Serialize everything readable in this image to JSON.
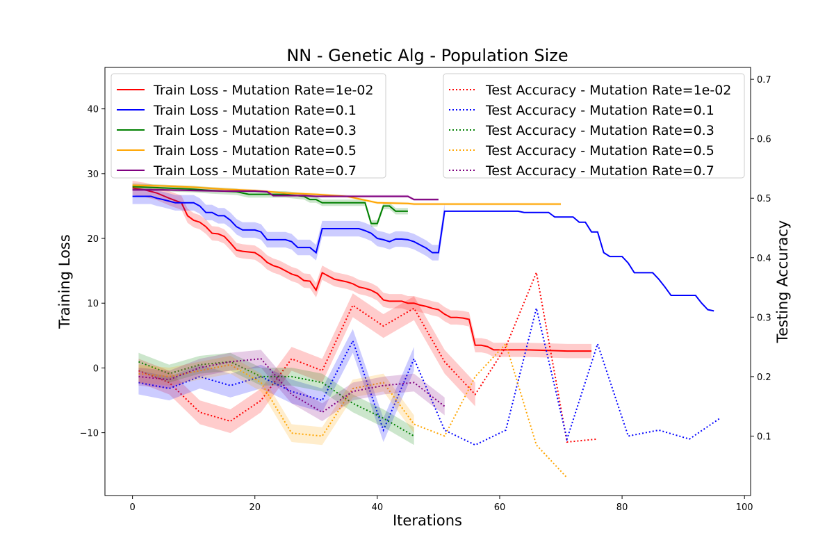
{
  "chart_data": {
    "type": "line",
    "title": "NN - Genetic Alg - Population Size",
    "xlabel": "Iterations",
    "ylabel_left": "Training Loss",
    "ylabel_right": "Testing Accuracy",
    "xlim": [
      -4.5,
      101
    ],
    "ylim_left": [
      -19.7,
      46.4
    ],
    "ylim_right": [
      0.0,
      0.72
    ],
    "x_ticks": [
      0,
      20,
      40,
      60,
      80,
      100
    ],
    "y_ticks_left": [
      -10,
      0,
      10,
      20,
      30,
      40
    ],
    "y_ticks_right": [
      0.1,
      0.2,
      0.3,
      0.4,
      0.5,
      0.6,
      0.7
    ],
    "grid": false,
    "legend_left_position": "upper-left",
    "legend_right_position": "upper-right",
    "train_series": [
      {
        "name": "Train Loss - Mutation Rate=1e-02",
        "color": "#ff0000",
        "points": [
          [
            0,
            27.8
          ],
          [
            2,
            27.5
          ],
          [
            4,
            27
          ],
          [
            6,
            26.2
          ],
          [
            8,
            25.5
          ],
          [
            9,
            23.5
          ],
          [
            10,
            22.8
          ],
          [
            11,
            22.5
          ],
          [
            12,
            21.8
          ],
          [
            13,
            20.8
          ],
          [
            14,
            20.7
          ],
          [
            15,
            20.3
          ],
          [
            16,
            19.3
          ],
          [
            17,
            18.2
          ],
          [
            18,
            18
          ],
          [
            20,
            17.8
          ],
          [
            21,
            17.2
          ],
          [
            22,
            16.3
          ],
          [
            23,
            15.8
          ],
          [
            24,
            15.5
          ],
          [
            25,
            15
          ],
          [
            26,
            14.5
          ],
          [
            27,
            14.2
          ],
          [
            28,
            13.5
          ],
          [
            29,
            13.4
          ],
          [
            30,
            12
          ],
          [
            31,
            14.7
          ],
          [
            32,
            14.2
          ],
          [
            33,
            13.7
          ],
          [
            34,
            13.5
          ],
          [
            35,
            13.3
          ],
          [
            36,
            13
          ],
          [
            37,
            12.5
          ],
          [
            38,
            12.3
          ],
          [
            39,
            12
          ],
          [
            40,
            11.5
          ],
          [
            41,
            10.5
          ],
          [
            42,
            10.3
          ],
          [
            44,
            10.3
          ],
          [
            45,
            10
          ],
          [
            46,
            10
          ],
          [
            47,
            9.7
          ],
          [
            48,
            9.5
          ],
          [
            49,
            9.2
          ],
          [
            50,
            9
          ],
          [
            51,
            8.3
          ],
          [
            52,
            7.8
          ],
          [
            53,
            7.8
          ],
          [
            54,
            7.7
          ],
          [
            55,
            7.5
          ],
          [
            56,
            3.5
          ],
          [
            57,
            3.5
          ],
          [
            58,
            3.3
          ],
          [
            59,
            2.8
          ],
          [
            64,
            2.8
          ],
          [
            68,
            2.7
          ],
          [
            71,
            2.6
          ],
          [
            75,
            2.6
          ]
        ],
        "band": 1.1
      },
      {
        "name": "Train Loss - Mutation Rate=0.1",
        "color": "#0000ff",
        "points": [
          [
            0,
            26.5
          ],
          [
            3,
            26.5
          ],
          [
            4,
            26.2
          ],
          [
            5,
            26
          ],
          [
            7,
            25.5
          ],
          [
            10,
            25.5
          ],
          [
            11,
            25
          ],
          [
            12,
            24
          ],
          [
            13,
            24
          ],
          [
            14,
            23.5
          ],
          [
            15,
            23.5
          ],
          [
            16,
            22.8
          ],
          [
            17,
            21.8
          ],
          [
            18,
            21.3
          ],
          [
            20,
            21.3
          ],
          [
            21,
            21
          ],
          [
            22,
            19.8
          ],
          [
            25,
            19.8
          ],
          [
            26,
            19.5
          ],
          [
            27,
            18.6
          ],
          [
            29,
            18.6
          ],
          [
            30,
            17.8
          ],
          [
            31,
            21.5
          ],
          [
            37,
            21.5
          ],
          [
            38,
            21.2
          ],
          [
            39,
            20.8
          ],
          [
            40,
            20
          ],
          [
            41,
            19.8
          ],
          [
            42,
            19.5
          ],
          [
            43,
            19.9
          ],
          [
            44,
            19.9
          ],
          [
            45,
            19.8
          ],
          [
            46,
            19.5
          ],
          [
            47,
            19
          ],
          [
            48,
            18.5
          ],
          [
            49,
            17.8
          ],
          [
            50,
            17.8
          ],
          [
            51,
            24.2
          ],
          [
            63,
            24.2
          ],
          [
            64,
            24
          ],
          [
            68,
            24
          ],
          [
            69,
            23.3
          ],
          [
            72,
            23.3
          ],
          [
            73,
            22.5
          ],
          [
            74,
            22.5
          ],
          [
            75,
            21
          ],
          [
            76,
            21
          ],
          [
            77,
            17.8
          ],
          [
            78,
            17.2
          ],
          [
            80,
            17.2
          ],
          [
            81,
            16.2
          ],
          [
            82,
            14.7
          ],
          [
            85,
            14.7
          ],
          [
            86,
            13.7
          ],
          [
            87,
            12.5
          ],
          [
            88,
            11.2
          ],
          [
            92,
            11.2
          ],
          [
            93,
            10
          ],
          [
            94,
            9
          ],
          [
            95,
            8.8
          ]
        ],
        "band_until": 51,
        "band": 1.2
      },
      {
        "name": "Train Loss - Mutation Rate=0.3",
        "color": "#008000",
        "points": [
          [
            0,
            28
          ],
          [
            5,
            27.8
          ],
          [
            10,
            27.6
          ],
          [
            13,
            27.4
          ],
          [
            17,
            27.2
          ],
          [
            19,
            26.8
          ],
          [
            25,
            26.8
          ],
          [
            28,
            26.5
          ],
          [
            29,
            26
          ],
          [
            30,
            26
          ],
          [
            31,
            25.5
          ],
          [
            38,
            25.5
          ],
          [
            39,
            22.3
          ],
          [
            40,
            22.3
          ],
          [
            41,
            25
          ],
          [
            42,
            25
          ],
          [
            43,
            24.2
          ],
          [
            45,
            24.2
          ]
        ],
        "band": 0.5
      },
      {
        "name": "Train Loss - Mutation Rate=0.5",
        "color": "#ffa500",
        "points": [
          [
            0,
            28.2
          ],
          [
            5,
            28.1
          ],
          [
            10,
            27.9
          ],
          [
            15,
            27.6
          ],
          [
            20,
            27.4
          ],
          [
            25,
            27
          ],
          [
            30,
            26.8
          ],
          [
            35,
            26.5
          ],
          [
            40,
            25.5
          ],
          [
            45,
            25.4
          ],
          [
            46,
            25.3
          ],
          [
            70,
            25.3
          ]
        ],
        "band": 0.2
      },
      {
        "name": "Train Loss - Mutation Rate=0.7",
        "color": "#800080",
        "points": [
          [
            0,
            27.5
          ],
          [
            5,
            27.5
          ],
          [
            10,
            27.4
          ],
          [
            15,
            27.3
          ],
          [
            20,
            27.3
          ],
          [
            22,
            27.2
          ],
          [
            23,
            26.6
          ],
          [
            28,
            26.6
          ],
          [
            30,
            26.5
          ],
          [
            45,
            26.5
          ],
          [
            46,
            26
          ],
          [
            50,
            26
          ]
        ],
        "band": 0.2
      }
    ],
    "test_series": [
      {
        "name": "Test Accuracy - Mutation Rate=1e-02",
        "color": "#ff0000",
        "points": [
          [
            1,
            0.21
          ],
          [
            6,
            0.19
          ],
          [
            11,
            0.14
          ],
          [
            16,
            0.125
          ],
          [
            21,
            0.16
          ],
          [
            26,
            0.23
          ],
          [
            31,
            0.21
          ],
          [
            36,
            0.32
          ],
          [
            41,
            0.285
          ],
          [
            46,
            0.315
          ],
          [
            51,
            0.225
          ],
          [
            56,
            0.17
          ],
          [
            61,
            0.25
          ],
          [
            66,
            0.375
          ],
          [
            71,
            0.09
          ],
          [
            76,
            0.095
          ]
        ],
        "band_until": 56,
        "band": 0.02
      },
      {
        "name": "Test Accuracy - Mutation Rate=0.1",
        "color": "#0000ff",
        "points": [
          [
            1,
            0.19
          ],
          [
            6,
            0.18
          ],
          [
            11,
            0.2
          ],
          [
            16,
            0.185
          ],
          [
            21,
            0.2
          ],
          [
            26,
            0.175
          ],
          [
            31,
            0.16
          ],
          [
            36,
            0.26
          ],
          [
            41,
            0.11
          ],
          [
            46,
            0.23
          ],
          [
            51,
            0.11
          ],
          [
            56,
            0.085
          ],
          [
            61,
            0.11
          ],
          [
            66,
            0.315
          ],
          [
            71,
            0.095
          ],
          [
            76,
            0.255
          ],
          [
            81,
            0.1
          ],
          [
            86,
            0.11
          ],
          [
            91,
            0.095
          ],
          [
            96,
            0.13
          ]
        ],
        "band_until": 46,
        "band": 0.02
      },
      {
        "name": "Test Accuracy - Mutation Rate=0.3",
        "color": "#008000",
        "points": [
          [
            1,
            0.225
          ],
          [
            6,
            0.205
          ],
          [
            11,
            0.22
          ],
          [
            16,
            0.225
          ],
          [
            21,
            0.2
          ],
          [
            26,
            0.2
          ],
          [
            31,
            0.19
          ],
          [
            36,
            0.155
          ],
          [
            41,
            0.13
          ],
          [
            46,
            0.1
          ]
        ],
        "band": 0.015
      },
      {
        "name": "Test Accuracy - Mutation Rate=0.5",
        "color": "#ffa500",
        "points": [
          [
            1,
            0.205
          ],
          [
            6,
            0.2
          ],
          [
            11,
            0.21
          ],
          [
            16,
            0.22
          ],
          [
            21,
            0.19
          ],
          [
            26,
            0.105
          ],
          [
            31,
            0.1
          ],
          [
            36,
            0.18
          ],
          [
            41,
            0.19
          ],
          [
            46,
            0.12
          ],
          [
            51,
            0.1
          ],
          [
            56,
            0.2
          ],
          [
            61,
            0.255
          ],
          [
            66,
            0.085
          ],
          [
            71,
            0.03
          ]
        ],
        "band_until": 46,
        "band": 0.015
      },
      {
        "name": "Test Accuracy - Mutation Rate=0.7",
        "color": "#800080",
        "points": [
          [
            1,
            0.2
          ],
          [
            6,
            0.195
          ],
          [
            11,
            0.215
          ],
          [
            16,
            0.225
          ],
          [
            21,
            0.23
          ],
          [
            26,
            0.17
          ],
          [
            31,
            0.14
          ],
          [
            36,
            0.175
          ],
          [
            41,
            0.185
          ],
          [
            46,
            0.19
          ],
          [
            51,
            0.15
          ]
        ],
        "band": 0.015
      }
    ]
  }
}
